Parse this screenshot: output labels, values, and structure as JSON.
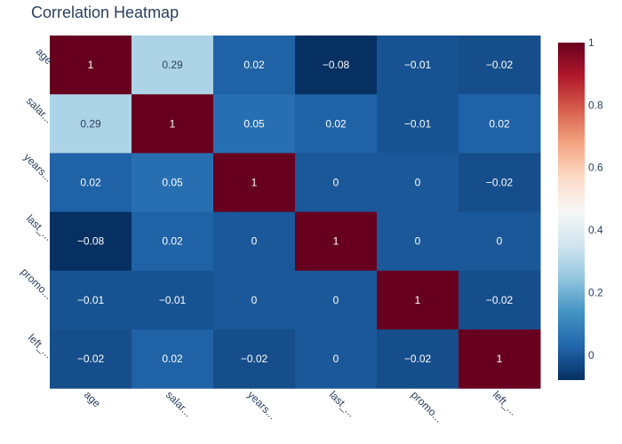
{
  "chart_data": {
    "type": "heatmap",
    "title": "Correlation Heatmap",
    "x_labels": [
      "age",
      "salar...",
      "years...",
      "last_...",
      "promo...",
      "left_..."
    ],
    "y_labels": [
      "age",
      "salar...",
      "years...",
      "last_...",
      "promo...",
      "left_..."
    ],
    "values": [
      [
        1,
        0.29,
        0.02,
        -0.08,
        -0.01,
        -0.02
      ],
      [
        0.29,
        1,
        0.05,
        0.02,
        -0.01,
        0.02
      ],
      [
        0.02,
        0.05,
        1,
        0,
        0,
        -0.02
      ],
      [
        -0.08,
        0.02,
        0,
        1,
        0,
        0
      ],
      [
        -0.01,
        -0.01,
        0,
        0,
        1,
        -0.02
      ],
      [
        -0.02,
        0.02,
        -0.02,
        0,
        -0.02,
        1
      ]
    ],
    "cell_labels": [
      [
        "1",
        "0.29",
        "0.02",
        "−0.08",
        "−0.01",
        "−0.02"
      ],
      [
        "0.29",
        "1",
        "0.05",
        "0.02",
        "−0.01",
        "0.02"
      ],
      [
        "0.02",
        "0.05",
        "1",
        "0",
        "0",
        "−0.02"
      ],
      [
        "−0.08",
        "0.02",
        "0",
        "1",
        "0",
        "0"
      ],
      [
        "−0.01",
        "−0.01",
        "0",
        "0",
        "1",
        "−0.02"
      ],
      [
        "−0.02",
        "0.02",
        "−0.02",
        "0",
        "−0.02",
        "1"
      ]
    ],
    "colorscale": {
      "name": "RdBu",
      "zmin": -0.08,
      "zmax": 1,
      "stops": [
        "#053061",
        "#2166ac",
        "#4393c3",
        "#92c5de",
        "#d1e5f0",
        "#f7f7f7",
        "#fddbc7",
        "#f4a582",
        "#d6604d",
        "#b2182b",
        "#67001f"
      ]
    },
    "colorbar_ticks": [
      {
        "value": 0,
        "label": "0"
      },
      {
        "value": 0.2,
        "label": "0.2"
      },
      {
        "value": 0.4,
        "label": "0.4"
      },
      {
        "value": 0.6,
        "label": "0.6"
      },
      {
        "value": 0.8,
        "label": "0.8"
      },
      {
        "value": 1,
        "label": "1"
      }
    ],
    "text_color_dark": "#2a3f5f",
    "text_color_light": "#ffffff",
    "tick_color": "#2a3f5f"
  }
}
